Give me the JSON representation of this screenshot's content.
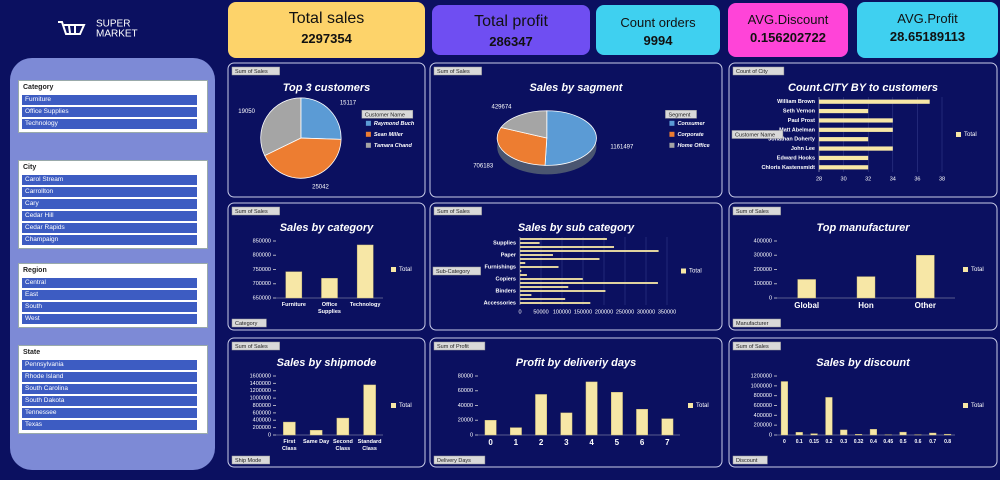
{
  "logo": {
    "text": [
      "SUPER",
      "MARKET"
    ]
  },
  "kpis": [
    {
      "label": "Total sales",
      "value": "2297354"
    },
    {
      "label": "Total profit",
      "value": "286347"
    },
    {
      "label": "Count orders",
      "value": "9994"
    },
    {
      "label": "AVG.Discount",
      "value": "0.156202722"
    },
    {
      "label": "AVG.Profit",
      "value": "28.65189113"
    }
  ],
  "slicers": [
    {
      "title": "Category",
      "items": [
        "Furniture",
        "Office Supplies",
        "Technology"
      ]
    },
    {
      "title": "City",
      "items": [
        "Carol Stream",
        "Carrollton",
        "Cary",
        "Cedar Hill",
        "Cedar Rapids",
        "Champaign"
      ]
    },
    {
      "title": "Region",
      "items": [
        "Central",
        "East",
        "South",
        "West"
      ]
    },
    {
      "title": "State",
      "items": [
        "Pennsylvania",
        "Rhode Island",
        "South Carolina",
        "South Dakota",
        "Tennessee",
        "Texas"
      ]
    }
  ],
  "chart_data": [
    {
      "type": "pie",
      "title": "Top 3 customers",
      "field_buttons": [
        "Sum of Sales",
        "Customer Name"
      ],
      "categories": [
        "Raymond Buch",
        "Sean Miller",
        "Tamara Chand"
      ],
      "values": [
        15117,
        25042,
        19050
      ],
      "colors": [
        "#5b9bd5",
        "#ed7d31",
        "#a5a5a5"
      ]
    },
    {
      "type": "pie",
      "title": "Sales by sagment",
      "3d": true,
      "field_buttons": [
        "Sum of Sales",
        "Segment"
      ],
      "categories": [
        "Consumer",
        "Corporate",
        "Home Office"
      ],
      "values": [
        1161497,
        706183,
        429674
      ],
      "colors": [
        "#5b9bd5",
        "#ed7d31",
        "#a5a5a5"
      ]
    },
    {
      "type": "barh",
      "title": "Count.CITY BY to customers",
      "field_buttons": [
        "Count of City",
        "Customer Name"
      ],
      "categories": [
        "William Brown",
        "Seth Vernon",
        "Paul Prost",
        "Matt Abelman",
        "Jonathan Doherty",
        "John Lee",
        "Edward Hooks",
        "Chloris Kastensmidt"
      ],
      "series": [
        {
          "name": "Total",
          "color": "#f7e7a6",
          "values": [
            37,
            32,
            34,
            34,
            32,
            34,
            32,
            32
          ]
        }
      ],
      "xlim": [
        28,
        38
      ],
      "xticks": [
        28,
        30,
        32,
        34,
        36,
        38
      ]
    },
    {
      "type": "bar",
      "title": "Sales by category",
      "field_buttons": [
        "Sum of Sales",
        "Category"
      ],
      "categories": [
        "Furniture",
        "Office Supplies",
        "Technology"
      ],
      "series": [
        {
          "name": "Total",
          "color": "#f7e7a6",
          "values": [
            742000,
            719047,
            836154
          ]
        }
      ],
      "ylim": [
        650000,
        850000
      ],
      "yticks": [
        650000,
        700000,
        750000,
        800000,
        850000
      ]
    },
    {
      "type": "barh",
      "title": "Sales by sub category",
      "field_buttons": [
        "Sum of Sales",
        "Sub-Category"
      ],
      "categories": [
        null,
        "Supplies",
        null,
        null,
        "Paper",
        null,
        null,
        "Furnishings",
        null,
        null,
        "Copiers",
        null,
        null,
        "Binders",
        null,
        null,
        "Accessories"
      ],
      "series": [
        {
          "name": "Total",
          "color": "#f7e7a6",
          "values": [
            206966,
            46674,
            223844,
            330007,
            78479,
            189239,
            12486,
            91705,
            3024,
            16476,
            149528,
            328449,
            114880,
            203413,
            27119,
            107532,
            167380
          ]
        }
      ],
      "xlim": [
        0,
        350000
      ],
      "xticks": [
        0,
        50000,
        100000,
        150000,
        200000,
        250000,
        300000,
        350000
      ]
    },
    {
      "type": "bar",
      "title": "Top manufacturer",
      "field_buttons": [
        "Sum of Sales",
        "Manufacturer"
      ],
      "categories": [
        "Global",
        "Hon",
        "Other"
      ],
      "series": [
        {
          "name": "Total",
          "color": "#f7e7a6",
          "values": [
            130000,
            150000,
            300000
          ]
        }
      ],
      "ylim": [
        0,
        400000
      ],
      "yticks": [
        0,
        100000,
        200000,
        300000,
        400000
      ]
    },
    {
      "type": "bar",
      "title": "Sales by shipmode",
      "field_buttons": [
        "Sum of Sales",
        "Ship Mode"
      ],
      "categories": [
        "First Class",
        "Same Day",
        "Second Class",
        "Standard Class"
      ],
      "series": [
        {
          "name": "Total",
          "color": "#f7e7a6",
          "values": [
            351428,
            128363,
            459194,
            1358216
          ]
        }
      ],
      "ylim": [
        0,
        1600000
      ],
      "yticks": [
        0,
        200000,
        400000,
        600000,
        800000,
        1000000,
        1200000,
        1400000,
        1600000
      ]
    },
    {
      "type": "bar",
      "title": "Profit by deliveriy days",
      "field_buttons": [
        "Sum of Profit",
        "Delivery Days"
      ],
      "categories": [
        "0",
        "1",
        "2",
        "3",
        "4",
        "5",
        "6",
        "7"
      ],
      "series": [
        {
          "name": "Total",
          "color": "#f7e7a6",
          "values": [
            20000,
            10000,
            55000,
            30000,
            72000,
            58000,
            35000,
            22000
          ]
        }
      ],
      "ylim": [
        0,
        80000
      ],
      "yticks": [
        0,
        20000,
        40000,
        60000,
        80000
      ]
    },
    {
      "type": "bar",
      "title": "Sales by discount",
      "field_buttons": [
        "Sum of Sales",
        "Discount"
      ],
      "categories": [
        "0",
        "0.1",
        "0.15",
        "0.2",
        "0.3",
        "0.32",
        "0.4",
        "0.45",
        "0.5",
        "0.6",
        "0.7",
        "0.8"
      ],
      "series": [
        {
          "name": "Total",
          "color": "#f7e7a6",
          "values": [
            1087908,
            54369,
            27558,
            764595,
            103226,
            14493,
            116418,
            5484,
            58919,
            6645,
            40620,
            16963
          ]
        }
      ],
      "ylim": [
        0,
        1200000
      ],
      "yticks": [
        0,
        200000,
        400000,
        600000,
        800000,
        1000000,
        1200000
      ]
    }
  ]
}
